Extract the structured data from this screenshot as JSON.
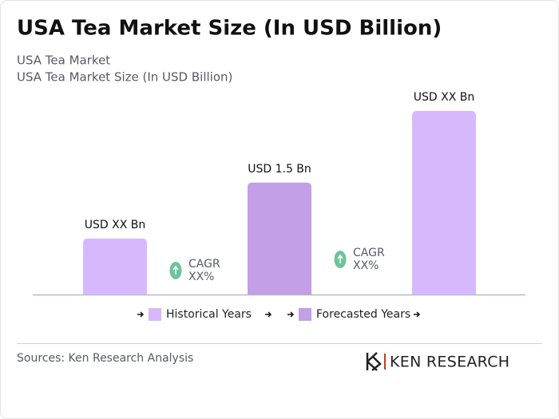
{
  "chart_data": {
    "type": "bar",
    "title": "USA Tea Market Size (In USD Billion)",
    "subtitle": [
      "USA Tea Market",
      "USA Tea Market Size (In USD Billion)"
    ],
    "values": [
      0.75,
      1.5,
      2.46
    ],
    "value_labels": [
      "USD XX Bn",
      "USD 1.5 Bn",
      "USD XX Bn"
    ],
    "colors": [
      "#d6b9fd",
      "#c29fe6",
      "#d6b9fd"
    ],
    "legend": [
      {
        "name": "Historical Years",
        "color": "#d6b9fd"
      },
      {
        "name": "Forecasted Years",
        "color": "#c29fe6"
      }
    ],
    "annotations": [
      [
        "CAGR",
        "XX%"
      ],
      [
        "CAGR",
        "XX%"
      ]
    ],
    "source": "Sources: Ken Research Analysis",
    "logo": "KEN RESEARCH"
  }
}
